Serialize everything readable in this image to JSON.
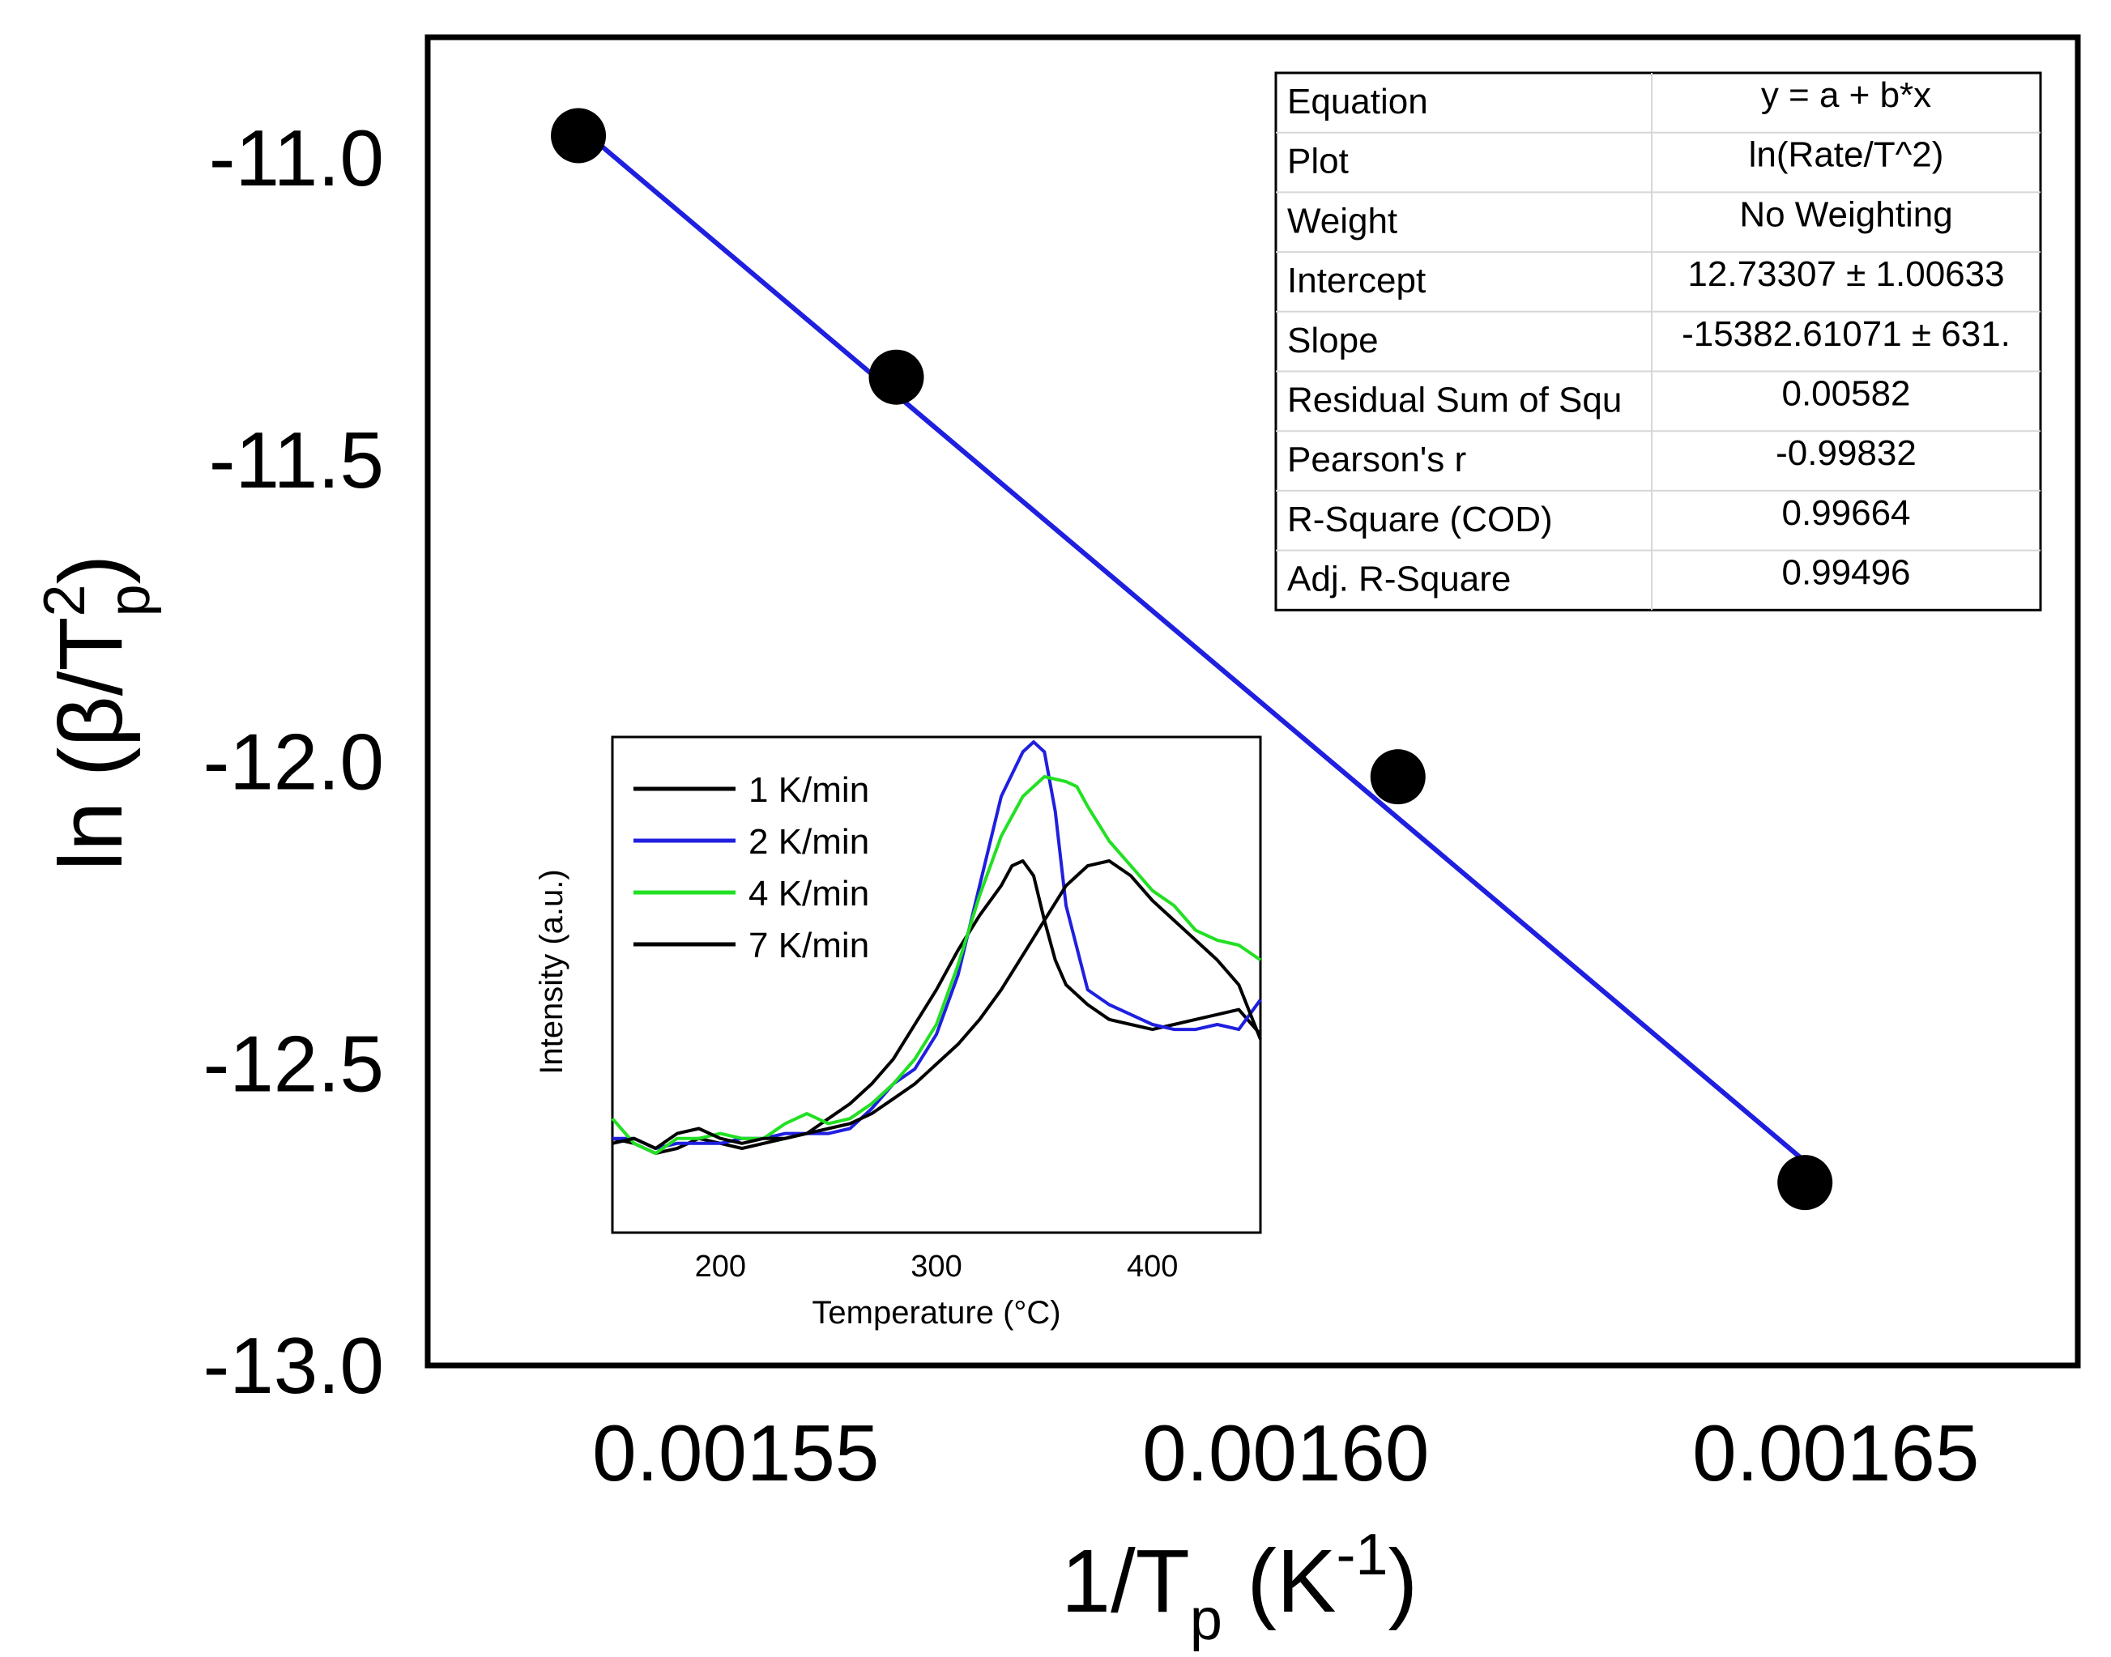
{
  "chart_data": {
    "type": "scatter",
    "main": {
      "xlabel": {
        "base": "1/T",
        "sub": "p",
        "open": " (K",
        "sup": "-1",
        "close": ")"
      },
      "ylabel": {
        "base": "ln (β/T",
        "sup": "2",
        "sub": "p",
        "close": ")"
      },
      "xlim": [
        0.001522,
        0.001672
      ],
      "ylim": [
        -13.0,
        -10.8
      ],
      "x_ticks": [
        0.00155,
        0.0016,
        0.00165
      ],
      "x_tick_labels": [
        "0.00155",
        "0.00160",
        "0.00165"
      ],
      "y_ticks": [
        -11.0,
        -11.5,
        -12.0,
        -12.5,
        -13.0
      ],
      "y_tick_labels": [
        "-11.0",
        "-11.5",
        "-12.0",
        "-12.5",
        "-13.0"
      ],
      "points": [
        {
          "x": 0.0015357,
          "y": -10.963
        },
        {
          "x": 0.0015646,
          "y": -11.363
        },
        {
          "x": 0.0016102,
          "y": -12.025
        },
        {
          "x": 0.0016472,
          "y": -12.697
        }
      ],
      "fit_line": {
        "x": [
          0.0015357,
          0.0016472
        ],
        "y": [
          -10.948,
          -12.662
        ],
        "color": "#1f1fe0"
      },
      "point_color": "#000000"
    },
    "fit_table": [
      {
        "label": "Equation",
        "value": "y = a + b*x"
      },
      {
        "label": "Plot",
        "value": "ln(Rate/T^2)"
      },
      {
        "label": "Weight",
        "value": "No Weighting"
      },
      {
        "label": "Intercept",
        "value": "12.73307 ± 1.00633"
      },
      {
        "label": "Slope",
        "value": "-15382.61071 ± 631."
      },
      {
        "label": "Residual Sum of Squ",
        "value": "0.00582"
      },
      {
        "label": "Pearson's r",
        "value": "-0.99832"
      },
      {
        "label": "R-Square (COD)",
        "value": "0.99664"
      },
      {
        "label": "Adj. R-Square",
        "value": "0.99496"
      }
    ],
    "inset": {
      "type": "line",
      "xlabel": "Temperature (°C)",
      "ylabel": "Intensity (a.u.)",
      "xlim": [
        150,
        450
      ],
      "ylim": [
        0,
        1
      ],
      "x_ticks": [
        200,
        300,
        400
      ],
      "x_tick_labels": [
        "200",
        "300",
        "400"
      ],
      "series": [
        {
          "name": "1 K/min",
          "color": "#000000",
          "x": [
            150,
            160,
            170,
            180,
            190,
            200,
            210,
            220,
            230,
            240,
            250,
            260,
            270,
            280,
            290,
            300,
            310,
            320,
            330,
            335,
            340,
            345,
            350,
            355,
            360,
            370,
            380,
            390,
            400,
            410,
            420,
            430,
            440,
            450
          ],
          "y": [
            0.19,
            0.18,
            0.16,
            0.17,
            0.19,
            0.18,
            0.17,
            0.18,
            0.19,
            0.2,
            0.23,
            0.26,
            0.3,
            0.35,
            0.42,
            0.49,
            0.57,
            0.64,
            0.7,
            0.74,
            0.75,
            0.72,
            0.63,
            0.55,
            0.5,
            0.46,
            0.43,
            0.42,
            0.41,
            0.42,
            0.43,
            0.44,
            0.45,
            0.4
          ]
        },
        {
          "name": "2 K/min",
          "color": "#1f1fe0",
          "x": [
            150,
            160,
            170,
            180,
            190,
            200,
            210,
            220,
            230,
            240,
            250,
            260,
            270,
            280,
            290,
            300,
            310,
            320,
            330,
            340,
            345,
            350,
            355,
            360,
            370,
            380,
            390,
            400,
            410,
            420,
            430,
            440,
            450
          ],
          "y": [
            0.19,
            0.19,
            0.17,
            0.18,
            0.18,
            0.18,
            0.19,
            0.19,
            0.2,
            0.2,
            0.2,
            0.21,
            0.25,
            0.3,
            0.33,
            0.4,
            0.52,
            0.7,
            0.88,
            0.97,
            0.99,
            0.97,
            0.85,
            0.66,
            0.49,
            0.46,
            0.44,
            0.42,
            0.41,
            0.41,
            0.42,
            0.41,
            0.47
          ]
        },
        {
          "name": "4 K/min",
          "color": "#22e022",
          "x": [
            150,
            160,
            170,
            180,
            190,
            200,
            210,
            220,
            230,
            240,
            250,
            260,
            270,
            280,
            290,
            300,
            310,
            320,
            330,
            340,
            350,
            360,
            365,
            370,
            380,
            390,
            400,
            410,
            420,
            430,
            440,
            450
          ],
          "y": [
            0.23,
            0.18,
            0.16,
            0.19,
            0.19,
            0.2,
            0.19,
            0.19,
            0.22,
            0.24,
            0.22,
            0.23,
            0.26,
            0.3,
            0.35,
            0.42,
            0.54,
            0.68,
            0.8,
            0.88,
            0.92,
            0.91,
            0.9,
            0.86,
            0.79,
            0.74,
            0.69,
            0.66,
            0.61,
            0.59,
            0.58,
            0.55
          ]
        },
        {
          "name": "7 K/min",
          "color": "#000000",
          "x": [
            150,
            160,
            170,
            180,
            190,
            200,
            210,
            220,
            230,
            240,
            250,
            260,
            270,
            280,
            290,
            300,
            310,
            320,
            330,
            340,
            350,
            360,
            370,
            380,
            390,
            400,
            410,
            420,
            430,
            440,
            450
          ],
          "y": [
            0.18,
            0.19,
            0.17,
            0.2,
            0.21,
            0.19,
            0.18,
            0.19,
            0.19,
            0.2,
            0.21,
            0.22,
            0.24,
            0.27,
            0.3,
            0.34,
            0.38,
            0.43,
            0.49,
            0.56,
            0.63,
            0.7,
            0.74,
            0.75,
            0.72,
            0.67,
            0.63,
            0.59,
            0.55,
            0.5,
            0.39
          ]
        }
      ]
    }
  }
}
